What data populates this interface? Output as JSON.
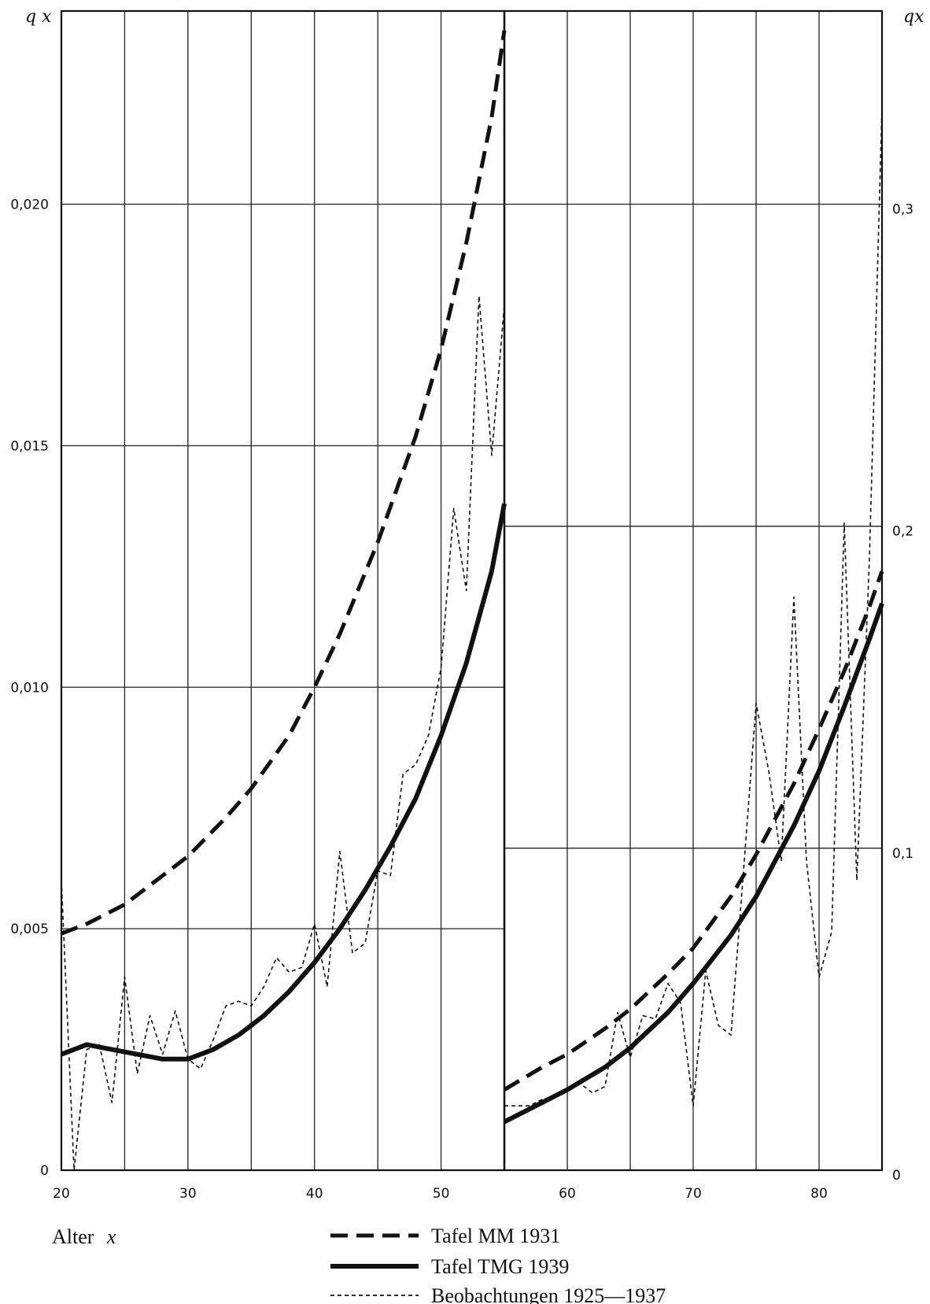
{
  "chart_data": {
    "type": "line",
    "title": "",
    "xlabel": "Alter x",
    "xlabel_prefix": "Alter",
    "xlabel_var": "x",
    "ylabel_left": "q x",
    "ylabel_right": "qx",
    "grid": true,
    "legend_position": "bottom",
    "panels": [
      {
        "name": "left",
        "xlim": [
          20,
          55
        ],
        "ylim": [
          0,
          0.024
        ],
        "x_ticks": [
          20,
          30,
          40,
          50
        ],
        "y_ticks": [
          0,
          0.005,
          0.01,
          0.015,
          0.02
        ],
        "y_tick_labels": [
          "0",
          "0,005",
          "0,010",
          "0,015",
          "0,020"
        ],
        "series": [
          {
            "name": "Tafel MM 1931",
            "style": "dashed",
            "x": [
              20,
              22,
              25,
              28,
              30,
              33,
              35,
              38,
              40,
              42,
              45,
              48,
              50,
              52,
              54,
              55
            ],
            "y": [
              0.0049,
              0.0051,
              0.0055,
              0.0061,
              0.0065,
              0.0073,
              0.0079,
              0.009,
              0.01,
              0.0111,
              0.013,
              0.0152,
              0.017,
              0.0192,
              0.0218,
              0.0236
            ]
          },
          {
            "name": "Tafel TMG 1939",
            "style": "solid",
            "x": [
              20,
              22,
              24,
              26,
              28,
              30,
              32,
              34,
              36,
              38,
              40,
              42,
              44,
              46,
              48,
              50,
              52,
              54,
              55
            ],
            "y": [
              0.0024,
              0.0026,
              0.0025,
              0.0024,
              0.0023,
              0.0023,
              0.0025,
              0.0028,
              0.0032,
              0.0037,
              0.0043,
              0.005,
              0.0058,
              0.0067,
              0.0077,
              0.009,
              0.0105,
              0.0124,
              0.0138
            ]
          },
          {
            "name": "Beobachtungen 1925—1937",
            "style": "dotted",
            "x": [
              20,
              21,
              22,
              23,
              24,
              25,
              26,
              27,
              28,
              29,
              30,
              31,
              32,
              33,
              34,
              35,
              36,
              37,
              38,
              39,
              40,
              41,
              42,
              43,
              44,
              45,
              46,
              47,
              48,
              49,
              50,
              51,
              52,
              53,
              54,
              55
            ],
            "y": [
              0.006,
              0.0,
              0.0025,
              0.0026,
              0.0014,
              0.004,
              0.002,
              0.0032,
              0.0024,
              0.0033,
              0.0023,
              0.0021,
              0.0027,
              0.0034,
              0.0035,
              0.0034,
              0.0038,
              0.0044,
              0.0041,
              0.0042,
              0.0051,
              0.0038,
              0.0066,
              0.0045,
              0.0047,
              0.0062,
              0.0061,
              0.0082,
              0.0084,
              0.009,
              0.0104,
              0.0137,
              0.012,
              0.0181,
              0.0148,
              0.0179
            ]
          }
        ]
      },
      {
        "name": "right",
        "xlim": [
          55,
          85
        ],
        "ylim": [
          0,
          0.36
        ],
        "x_ticks": [
          60,
          70,
          80
        ],
        "y_ticks": [
          0,
          0.1,
          0.2,
          0.3
        ],
        "y_tick_labels": [
          "0",
          "0,1",
          "0,2",
          "0,3"
        ],
        "series": [
          {
            "name": "Tafel MM 1931",
            "style": "dashed",
            "x": [
              55,
              58,
              60,
              63,
              65,
              68,
              70,
              73,
              75,
              78,
              80,
              82,
              84,
              85
            ],
            "y": [
              0.025,
              0.032,
              0.036,
              0.044,
              0.05,
              0.061,
              0.069,
              0.085,
              0.098,
              0.12,
              0.137,
              0.155,
              0.175,
              0.186
            ]
          },
          {
            "name": "Tafel TMG 1939",
            "style": "solid",
            "x": [
              55,
              58,
              60,
              63,
              65,
              68,
              70,
              73,
              75,
              78,
              80,
              82,
              84,
              85
            ],
            "y": [
              0.015,
              0.021,
              0.025,
              0.032,
              0.038,
              0.049,
              0.058,
              0.073,
              0.085,
              0.107,
              0.124,
              0.144,
              0.165,
              0.176
            ]
          },
          {
            "name": "Beobachtungen 1925—1937",
            "style": "dotted",
            "x": [
              55,
              56,
              57,
              58,
              59,
              60,
              61,
              62,
              63,
              64,
              65,
              66,
              67,
              68,
              69,
              70,
              71,
              72,
              73,
              74,
              75,
              76,
              77,
              78,
              79,
              80,
              81,
              82,
              83,
              84,
              85
            ],
            "y": [
              0.02,
              0.02,
              0.02,
              0.022,
              0.023,
              0.025,
              0.027,
              0.024,
              0.026,
              0.049,
              0.035,
              0.048,
              0.047,
              0.058,
              0.052,
              0.02,
              0.062,
              0.045,
              0.042,
              0.093,
              0.145,
              0.124,
              0.096,
              0.178,
              0.096,
              0.06,
              0.074,
              0.201,
              0.09,
              0.19,
              0.33
            ]
          }
        ]
      }
    ]
  }
}
